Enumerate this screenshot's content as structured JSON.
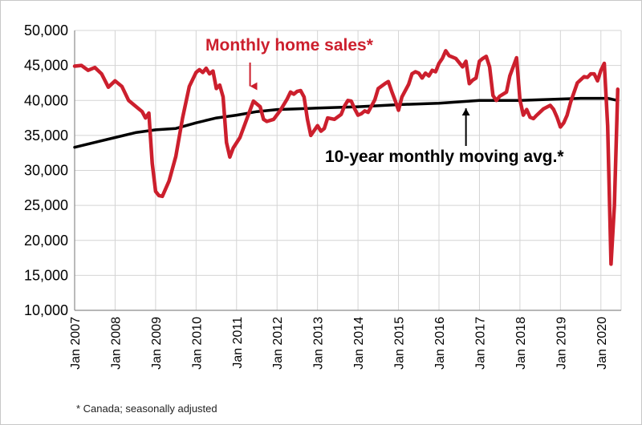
{
  "colors": {
    "sales": "#cc1f2d",
    "moving_avg": "#000000",
    "grid": "#d4d4d4"
  },
  "chart_data": {
    "type": "line",
    "title": "",
    "xlabel": "",
    "ylabel": "",
    "ylim": [
      10000,
      50000
    ],
    "yticks": [
      10000,
      15000,
      20000,
      25000,
      30000,
      35000,
      40000,
      45000,
      50000
    ],
    "ytick_labels": [
      "10,000",
      "15,000",
      "20,000",
      "25,000",
      "30,000",
      "35,000",
      "40,000",
      "45,000",
      "50,000"
    ],
    "xlim": [
      "2007-01",
      "2020-07"
    ],
    "xtick_labels": [
      "Jan 2007",
      "Jan 2008",
      "Jan 2009",
      "Jan 2010",
      "Jan 2011",
      "Jan 2012",
      "Jan 2013",
      "Jan 2014",
      "Jan 2015",
      "Jan 2016",
      "Jan 2017",
      "Jan 2018",
      "Jan 2019",
      "Jan 2020"
    ],
    "grid": true,
    "annotations": [
      {
        "text": "Monthly home sales*",
        "series": "sales",
        "arrow_to": [
          "2011-05",
          41000
        ]
      },
      {
        "text": "10-year monthly moving avg.*",
        "series": "moving_avg",
        "arrow_to": [
          "2016-09",
          39900
        ]
      }
    ],
    "footnote": "* Canada; seasonally adjusted",
    "series": [
      {
        "id": "sales",
        "color": "#cc1f2d",
        "points": [
          [
            "2007-01",
            44900
          ],
          [
            "2007-03",
            45000
          ],
          [
            "2007-05",
            44300
          ],
          [
            "2007-07",
            44700
          ],
          [
            "2007-09",
            43800
          ],
          [
            "2007-11",
            41900
          ],
          [
            "2008-01",
            42800
          ],
          [
            "2008-03",
            42000
          ],
          [
            "2008-05",
            40000
          ],
          [
            "2008-07",
            39200
          ],
          [
            "2008-09",
            38400
          ],
          [
            "2008-10",
            37500
          ],
          [
            "2008-11",
            38200
          ],
          [
            "2008-12",
            31000
          ],
          [
            "2009-01",
            27000
          ],
          [
            "2009-02",
            26400
          ],
          [
            "2009-03",
            26300
          ],
          [
            "2009-05",
            28500
          ],
          [
            "2009-07",
            32000
          ],
          [
            "2009-09",
            37500
          ],
          [
            "2009-11",
            42000
          ],
          [
            "2010-01",
            44000
          ],
          [
            "2010-02",
            44400
          ],
          [
            "2010-03",
            44000
          ],
          [
            "2010-04",
            44600
          ],
          [
            "2010-05",
            43800
          ],
          [
            "2010-06",
            44200
          ],
          [
            "2010-07",
            41700
          ],
          [
            "2010-08",
            42200
          ],
          [
            "2010-09",
            40500
          ],
          [
            "2010-10",
            34000
          ],
          [
            "2010-11",
            31900
          ],
          [
            "2010-12",
            33200
          ],
          [
            "2011-02",
            34700
          ],
          [
            "2011-04",
            37300
          ],
          [
            "2011-06",
            39900
          ],
          [
            "2011-08",
            39100
          ],
          [
            "2011-09",
            37300
          ],
          [
            "2011-10",
            37000
          ],
          [
            "2011-12",
            37300
          ],
          [
            "2012-02",
            38600
          ],
          [
            "2012-04",
            40200
          ],
          [
            "2012-05",
            41200
          ],
          [
            "2012-06",
            40900
          ],
          [
            "2012-07",
            41300
          ],
          [
            "2012-08",
            41400
          ],
          [
            "2012-09",
            40500
          ],
          [
            "2012-10",
            37300
          ],
          [
            "2012-11",
            35000
          ],
          [
            "2013-01",
            36400
          ],
          [
            "2013-02",
            35600
          ],
          [
            "2013-03",
            36000
          ],
          [
            "2013-04",
            37500
          ],
          [
            "2013-06",
            37300
          ],
          [
            "2013-08",
            38000
          ],
          [
            "2013-09",
            39200
          ],
          [
            "2013-10",
            40000
          ],
          [
            "2013-11",
            39900
          ],
          [
            "2013-12",
            38800
          ],
          [
            "2014-01",
            37900
          ],
          [
            "2014-02",
            38100
          ],
          [
            "2014-03",
            38500
          ],
          [
            "2014-04",
            38300
          ],
          [
            "2014-05",
            39200
          ],
          [
            "2014-06",
            40100
          ],
          [
            "2014-07",
            41700
          ],
          [
            "2014-09",
            42400
          ],
          [
            "2014-10",
            42700
          ],
          [
            "2014-11",
            41300
          ],
          [
            "2014-12",
            40000
          ],
          [
            "2015-01",
            38600
          ],
          [
            "2015-02",
            40500
          ],
          [
            "2015-04",
            42300
          ],
          [
            "2015-05",
            43800
          ],
          [
            "2015-06",
            44100
          ],
          [
            "2015-07",
            43900
          ],
          [
            "2015-08",
            43200
          ],
          [
            "2015-09",
            43900
          ],
          [
            "2015-10",
            43500
          ],
          [
            "2015-11",
            44300
          ],
          [
            "2015-12",
            44100
          ],
          [
            "2016-01",
            45300
          ],
          [
            "2016-02",
            46000
          ],
          [
            "2016-03",
            47100
          ],
          [
            "2016-04",
            46400
          ],
          [
            "2016-05",
            46200
          ],
          [
            "2016-06",
            46000
          ],
          [
            "2016-07",
            45400
          ],
          [
            "2016-08",
            44800
          ],
          [
            "2016-09",
            45600
          ],
          [
            "2016-10",
            42400
          ],
          [
            "2016-11",
            42900
          ],
          [
            "2016-12",
            43200
          ],
          [
            "2017-01",
            45600
          ],
          [
            "2017-02",
            46000
          ],
          [
            "2017-03",
            46300
          ],
          [
            "2017-04",
            44800
          ],
          [
            "2017-05",
            40700
          ],
          [
            "2017-06",
            40000
          ],
          [
            "2017-07",
            40600
          ],
          [
            "2017-09",
            41200
          ],
          [
            "2017-10",
            43500
          ],
          [
            "2017-12",
            46100
          ],
          [
            "2018-01",
            40100
          ],
          [
            "2018-02",
            37900
          ],
          [
            "2018-03",
            38700
          ],
          [
            "2018-04",
            37600
          ],
          [
            "2018-05",
            37400
          ],
          [
            "2018-06",
            37900
          ],
          [
            "2018-08",
            38800
          ],
          [
            "2018-10",
            39300
          ],
          [
            "2018-11",
            38700
          ],
          [
            "2018-12",
            37600
          ],
          [
            "2019-01",
            36200
          ],
          [
            "2019-02",
            36800
          ],
          [
            "2019-03",
            37900
          ],
          [
            "2019-04",
            39700
          ],
          [
            "2019-06",
            42500
          ],
          [
            "2019-08",
            43400
          ],
          [
            "2019-09",
            43300
          ],
          [
            "2019-10",
            43800
          ],
          [
            "2019-11",
            43800
          ],
          [
            "2019-12",
            42800
          ],
          [
            "2020-01",
            44300
          ],
          [
            "2020-02",
            45300
          ],
          [
            "2020-03",
            36400
          ],
          [
            "2020-04",
            16600
          ],
          [
            "2020-05",
            25000
          ],
          [
            "2020-06",
            41600
          ]
        ]
      },
      {
        "id": "moving_avg",
        "color": "#000000",
        "points": [
          [
            "2007-01",
            33300
          ],
          [
            "2008-01",
            34700
          ],
          [
            "2008-07",
            35400
          ],
          [
            "2009-01",
            35800
          ],
          [
            "2009-07",
            36000
          ],
          [
            "2010-01",
            36800
          ],
          [
            "2010-07",
            37500
          ],
          [
            "2011-01",
            37900
          ],
          [
            "2011-07",
            38400
          ],
          [
            "2012-01",
            38700
          ],
          [
            "2012-07",
            38800
          ],
          [
            "2013-01",
            38900
          ],
          [
            "2014-01",
            39100
          ],
          [
            "2015-01",
            39400
          ],
          [
            "2016-01",
            39600
          ],
          [
            "2016-07",
            39800
          ],
          [
            "2017-01",
            40000
          ],
          [
            "2018-01",
            40000
          ],
          [
            "2019-01",
            40200
          ],
          [
            "2019-07",
            40300
          ],
          [
            "2020-01",
            40300
          ],
          [
            "2020-03",
            40300
          ],
          [
            "2020-05",
            40100
          ],
          [
            "2020-06",
            40000
          ]
        ]
      }
    ]
  }
}
